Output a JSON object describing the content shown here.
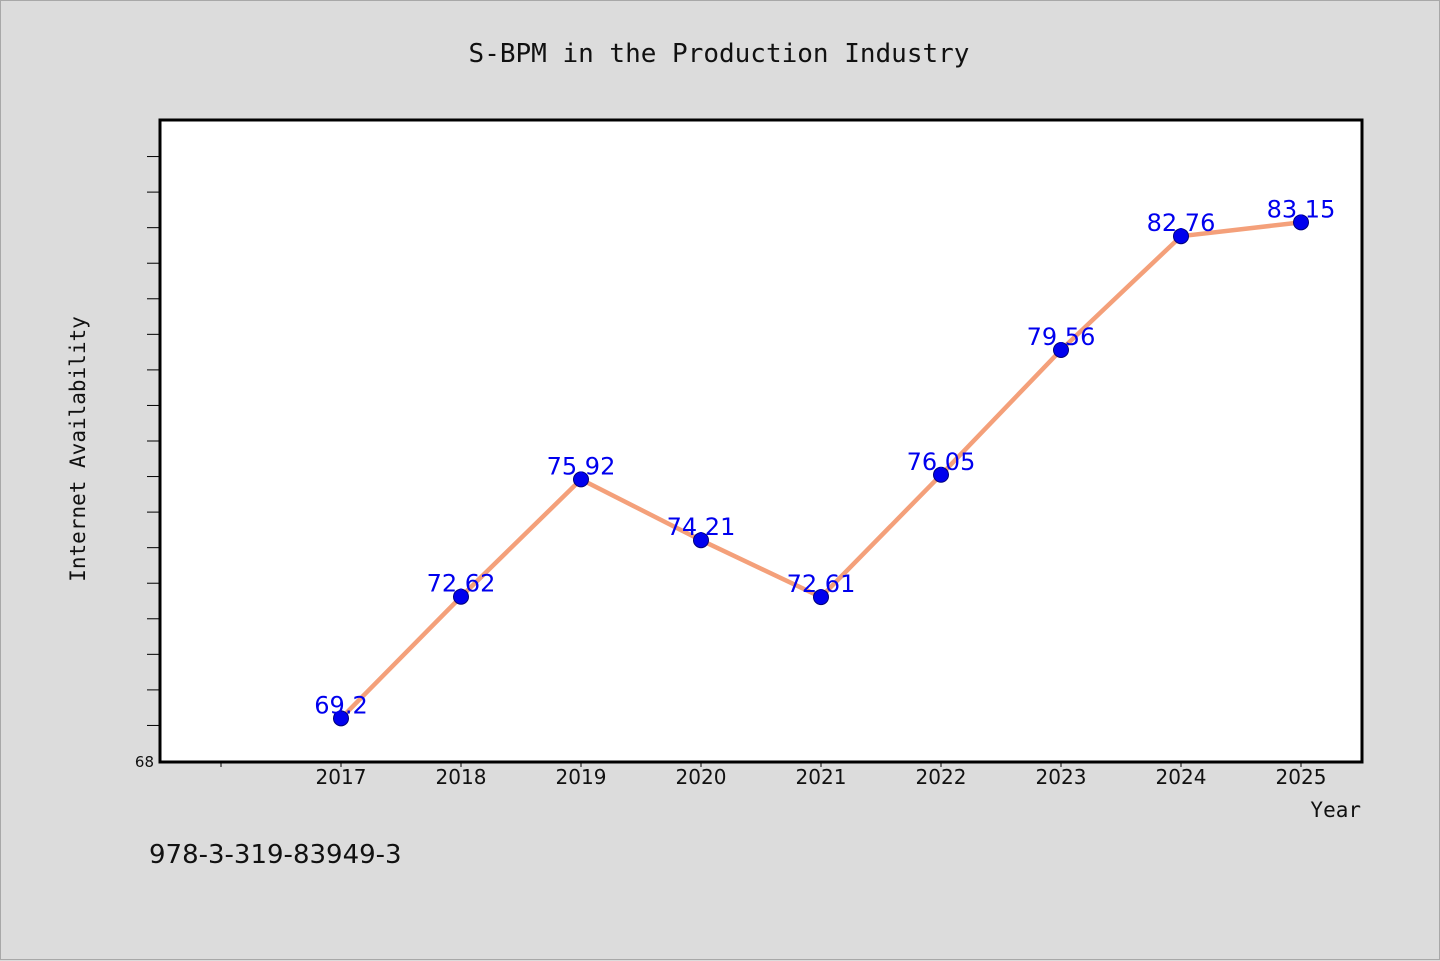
{
  "chart_data": {
    "type": "line",
    "title": "S-BPM in the Production Industry",
    "xlabel": "Year",
    "ylabel": "Internet Availability",
    "categories": [
      "2017",
      "2018",
      "2019",
      "2020",
      "2021",
      "2022",
      "2023",
      "2024",
      "2025"
    ],
    "values": [
      69.2,
      72.62,
      75.92,
      74.21,
      72.61,
      76.05,
      79.56,
      82.76,
      83.15
    ],
    "data_labels": [
      "69.2",
      "72.62",
      "75.92",
      "74.21",
      "72.61",
      "76.05",
      "79.56",
      "82.76",
      "83.15"
    ],
    "ylim": [
      68,
      86
    ],
    "y_min_label": "68",
    "grid": false,
    "legend": "none",
    "colors": {
      "line": "#f4a07a",
      "marker": "#0000ee",
      "label": "#0000ee",
      "plot_background": "#ffffff",
      "page_background": "#dcdcdc"
    }
  },
  "footer": {
    "isbn": "978-3-319-83949-3"
  }
}
